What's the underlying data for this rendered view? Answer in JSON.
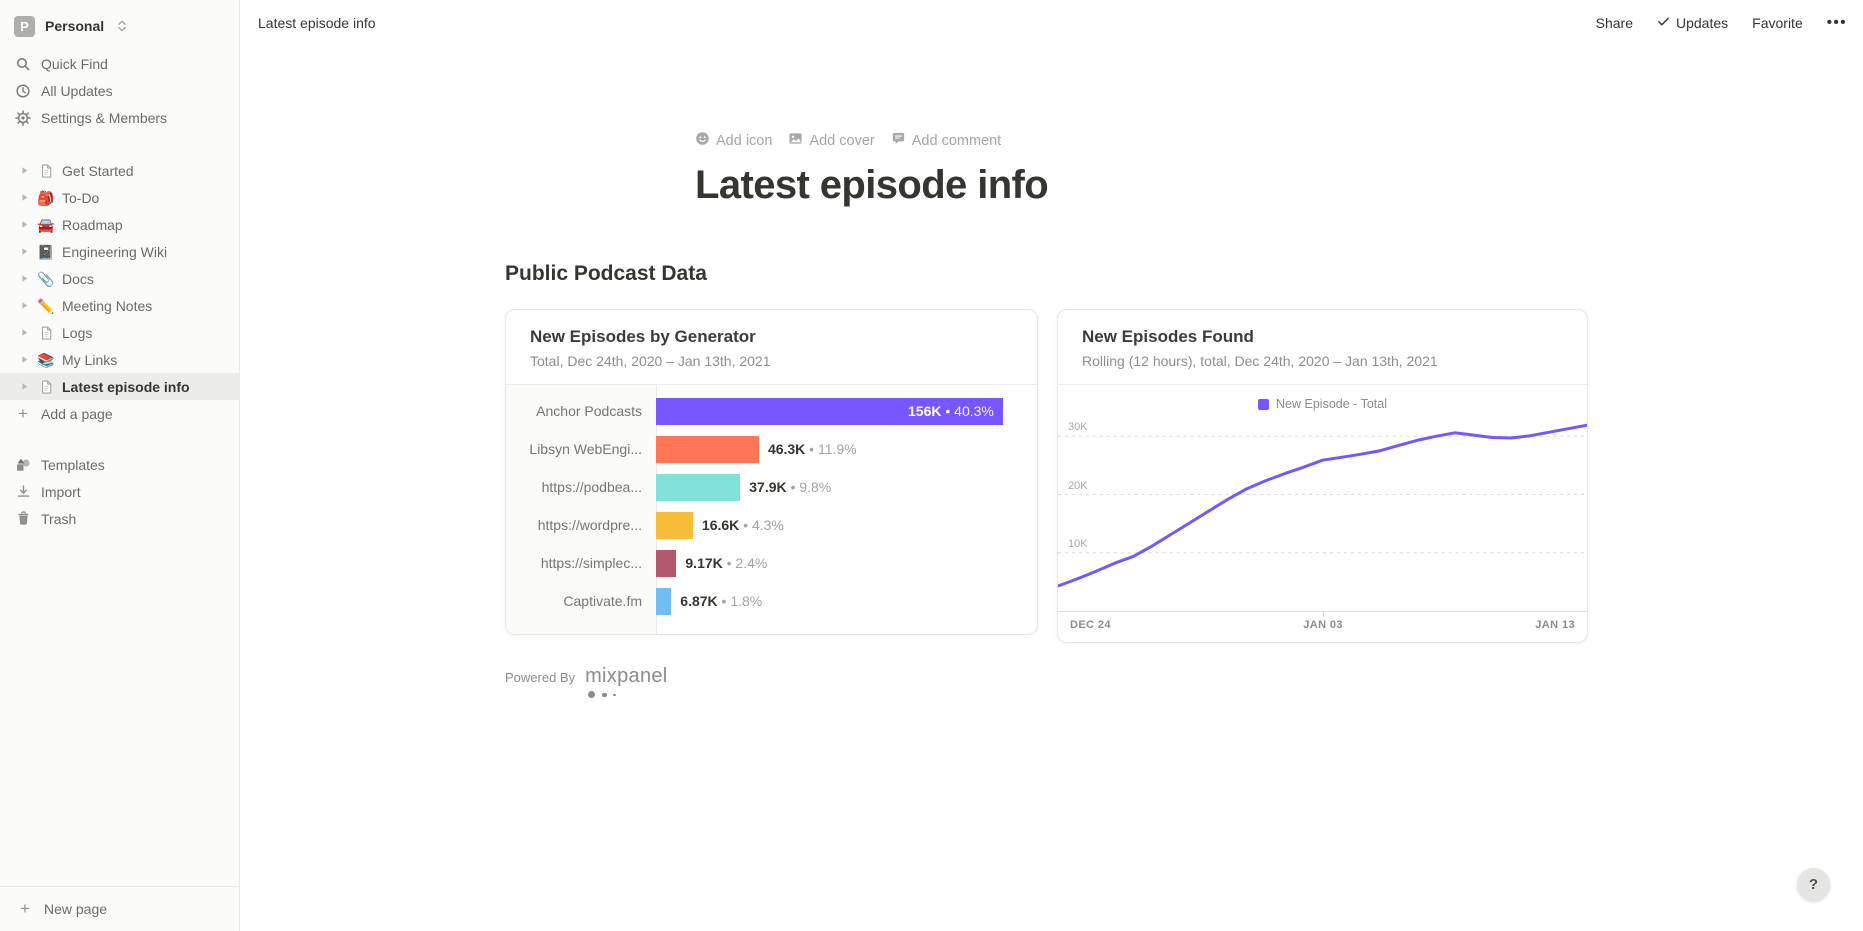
{
  "workspace": {
    "initial": "P",
    "name": "Personal"
  },
  "sidebar": {
    "menu": [
      {
        "icon": "search-icon",
        "label": "Quick Find"
      },
      {
        "icon": "clock-icon",
        "label": "All Updates"
      },
      {
        "icon": "gear-icon",
        "label": "Settings & Members"
      }
    ],
    "pages": [
      {
        "label": "Get Started",
        "icon": "page-icon"
      },
      {
        "label": "To-Do",
        "emoji": "🎒"
      },
      {
        "label": "Roadmap",
        "emoji": "🚘"
      },
      {
        "label": "Engineering Wiki",
        "emoji": "📓"
      },
      {
        "label": "Docs",
        "emoji": "📎"
      },
      {
        "label": "Meeting Notes",
        "emoji": "✏️"
      },
      {
        "label": "Logs",
        "icon": "page-icon"
      },
      {
        "label": "My Links",
        "emoji": "📚"
      },
      {
        "label": "Latest episode info",
        "icon": "page-icon",
        "selected": true
      }
    ],
    "add_page": "Add a page",
    "templates": "Templates",
    "import": "Import",
    "trash": "Trash",
    "new_page": "New page"
  },
  "topbar": {
    "breadcrumb": "Latest episode info",
    "share": "Share",
    "updates": "Updates",
    "favorite": "Favorite",
    "more": "•••"
  },
  "page": {
    "add_icon": "Add icon",
    "add_cover": "Add cover",
    "add_comment": "Add comment",
    "title": "Latest episode info",
    "section_heading": "Public Podcast Data",
    "powered_by": "Powered By",
    "mixpanel": "mixpanel",
    "help": "?"
  },
  "chart_data": [
    {
      "type": "bar",
      "orientation": "horizontal",
      "title": "New Episodes by Generator",
      "subtitle": "Total, Dec 24th, 2020 – Jan 13th, 2021",
      "categories": [
        "Anchor Podcasts",
        "Libsyn WebEngi...",
        "https://podbea...",
        "https://wordpre...",
        "https://simplec...",
        "Captivate.fm"
      ],
      "values": [
        156000,
        46300,
        37900,
        16600,
        9170,
        6870
      ],
      "value_labels": [
        "156K",
        "46.3K",
        "37.9K",
        "16.6K",
        "9.17K",
        "6.87K"
      ],
      "percent_labels": [
        "40.3%",
        "11.9%",
        "9.8%",
        "4.3%",
        "2.4%",
        "1.8%"
      ],
      "colors": [
        "#7856FF",
        "#FF7557",
        "#80E1D9",
        "#F8BC3B",
        "#B2596E",
        "#72BEF4"
      ],
      "xlim": [
        0,
        156000
      ],
      "grid": false,
      "legend_position": "none"
    },
    {
      "type": "line",
      "title": "New Episodes Found",
      "subtitle": "Rolling (12 hours), total, Dec 24th, 2020 – Jan 13th, 2021",
      "legend": [
        {
          "label": "New Episode - Total",
          "color": "#7856FF"
        }
      ],
      "x_range": [
        "Dec 24, 2020",
        "Jan 13, 2021"
      ],
      "x_tick_labels": [
        "DEC 24",
        "JAN 03",
        "JAN 13"
      ],
      "y_tick_labels": [
        "10K",
        "20K",
        "30K"
      ],
      "y_gridlines": [
        10000,
        20000,
        30000
      ],
      "ylim": [
        0,
        34000
      ],
      "grid": "dashed-horizontal",
      "legend_position": "top",
      "values_thousands": [
        4.3,
        5.5,
        6.8,
        8.2,
        9.4,
        11.2,
        13.2,
        15.2,
        17.2,
        19.2,
        21.0,
        22.4,
        23.6,
        24.7,
        25.9,
        26.4,
        26.9,
        27.5,
        28.4,
        29.3,
        30.0,
        30.6,
        30.2,
        29.8,
        29.7,
        30.1,
        30.7,
        31.3,
        31.9
      ]
    }
  ]
}
